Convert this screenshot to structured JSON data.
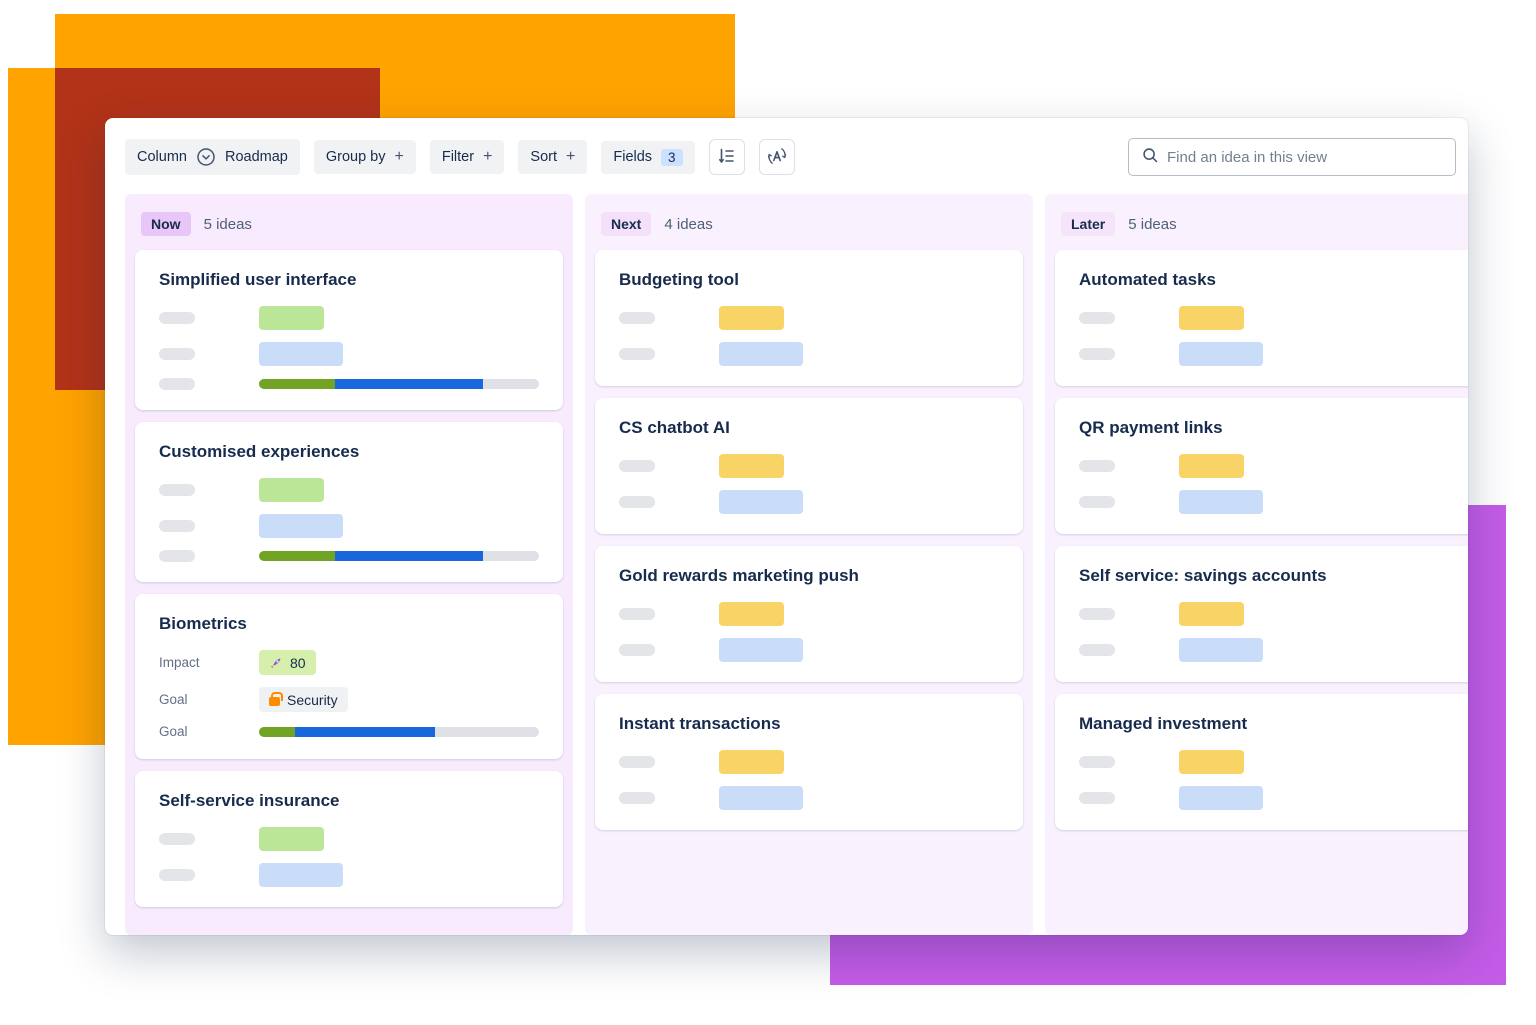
{
  "colors": {
    "accent_orange": "#FFA300",
    "accent_red": "#B23318",
    "accent_purple": "#C45CE8",
    "chip_bg": "#F1F2F4",
    "fields_badge_bg": "#CCE0FF",
    "text_primary": "#172B4D",
    "badge_now_bg": "#E9C6F8",
    "badge_next_bg": "#F5E0FB",
    "badge_later_bg": "#F6E4FB",
    "column_now_bg": "#F7EBFD",
    "column_next_bg": "#F9F1FE",
    "column_later_bg": "#F9F1FE",
    "pill_green": "#BCE697",
    "pill_yellow": "#F8D366",
    "pill_blue": "#C9DDF8",
    "pill_gray": "#E4E5E9",
    "progress_green": "#71A324",
    "progress_blue": "#1868DB",
    "progress_track": "#DFE1E6",
    "impact_chip_bg": "#D6EFAD",
    "goal_chip_bg": "#F0F1F3"
  },
  "toolbar": {
    "column_label": "Column",
    "column_value": "Roadmap",
    "group_by_label": "Group by",
    "filter_label": "Filter",
    "sort_label": "Sort",
    "fields_label": "Fields",
    "fields_count": "3",
    "plus": "+",
    "search_placeholder": "Find an idea in this view"
  },
  "board": {
    "columns": [
      {
        "theme": "now",
        "badge": "Now",
        "count": "5 ideas",
        "cards": [
          {
            "title": "Simplified user interface",
            "rows": [
              {
                "kind": "skeleton",
                "value": "green"
              },
              {
                "kind": "skeleton",
                "value": "blue"
              },
              {
                "kind": "progress",
                "green": 27,
                "blue": 53
              }
            ]
          },
          {
            "title": "Customised experiences",
            "rows": [
              {
                "kind": "skeleton",
                "value": "green"
              },
              {
                "kind": "skeleton",
                "value": "blue"
              },
              {
                "kind": "progress",
                "green": 27,
                "blue": 53
              }
            ]
          },
          {
            "title": "Biometrics",
            "rows": [
              {
                "kind": "field",
                "label": "Impact",
                "chip": "impact",
                "icon": "rocket-icon",
                "value": "80"
              },
              {
                "kind": "field",
                "label": "Goal",
                "chip": "goal",
                "icon": "lock-icon",
                "value": "Security"
              },
              {
                "kind": "progress",
                "label": "Goal",
                "green": 13,
                "blue": 50
              }
            ]
          },
          {
            "title": "Self-service insurance",
            "rows": [
              {
                "kind": "skeleton",
                "value": "green"
              },
              {
                "kind": "skeleton",
                "value": "blue"
              }
            ]
          }
        ]
      },
      {
        "theme": "next",
        "badge": "Next",
        "count": "4 ideas",
        "cards": [
          {
            "title": "Budgeting tool",
            "rows": [
              {
                "kind": "skeleton",
                "value": "yellow"
              },
              {
                "kind": "skeleton",
                "value": "blue"
              }
            ]
          },
          {
            "title": "CS chatbot AI",
            "rows": [
              {
                "kind": "skeleton",
                "value": "yellow"
              },
              {
                "kind": "skeleton",
                "value": "blue"
              }
            ]
          },
          {
            "title": "Gold rewards marketing push",
            "rows": [
              {
                "kind": "skeleton",
                "value": "yellow"
              },
              {
                "kind": "skeleton",
                "value": "blue"
              }
            ]
          },
          {
            "title": "Instant transactions",
            "rows": [
              {
                "kind": "skeleton",
                "value": "yellow"
              },
              {
                "kind": "skeleton",
                "value": "blue"
              }
            ]
          }
        ]
      },
      {
        "theme": "later",
        "badge": "Later",
        "count": "5 ideas",
        "cards": [
          {
            "title": "Automated tasks",
            "rows": [
              {
                "kind": "skeleton",
                "value": "yellow"
              },
              {
                "kind": "skeleton",
                "value": "blue"
              }
            ]
          },
          {
            "title": "QR payment links",
            "rows": [
              {
                "kind": "skeleton",
                "value": "yellow"
              },
              {
                "kind": "skeleton",
                "value": "blue"
              }
            ]
          },
          {
            "title": "Self service: savings accounts",
            "rows": [
              {
                "kind": "skeleton",
                "value": "yellow"
              },
              {
                "kind": "skeleton",
                "value": "blue"
              }
            ]
          },
          {
            "title": "Managed investment",
            "rows": [
              {
                "kind": "skeleton",
                "value": "yellow"
              },
              {
                "kind": "skeleton",
                "value": "blue"
              }
            ]
          }
        ]
      }
    ]
  }
}
